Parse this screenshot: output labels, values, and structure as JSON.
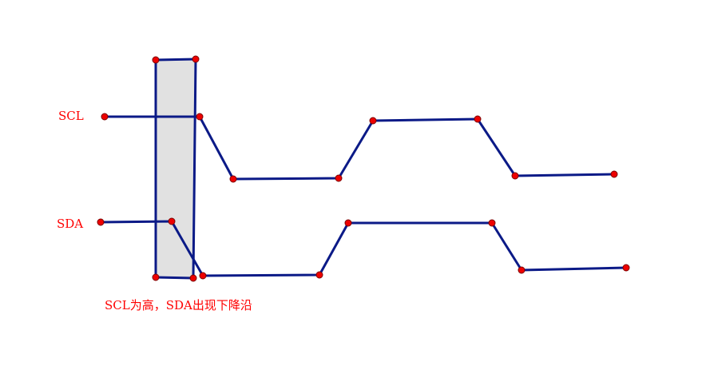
{
  "colors": {
    "line": "#0b1a87",
    "point": "#ee0000",
    "label": "#ff0000",
    "highlight_fill": "#e1e1e1"
  },
  "labels": {
    "scl": "SCL",
    "sda": "SDA",
    "caption": "SCL为高，SDA出现下降沿"
  }
}
